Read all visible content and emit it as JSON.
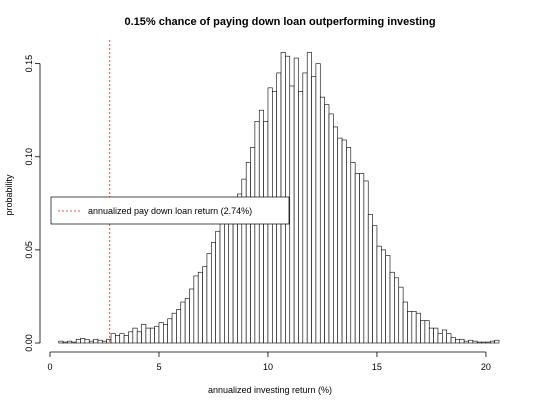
{
  "chart_data": {
    "type": "bar",
    "title": "0.15% chance of paying down loan outperforming investing",
    "xlabel": "annualized investing return (%)",
    "ylabel": "probability",
    "xlim": [
      0,
      20.6
    ],
    "ylim": [
      0,
      0.16
    ],
    "xticks": [
      0,
      5,
      10,
      15,
      20
    ],
    "yticks": [
      0.0,
      0.05,
      0.1,
      0.15
    ],
    "ytick_labels": [
      "0.00",
      "0.05",
      "0.10",
      "0.15"
    ],
    "bin_width": 0.2,
    "bins_x0": [
      0.4,
      0.6,
      0.8,
      1.0,
      1.2,
      1.4,
      1.6,
      1.8,
      2.0,
      2.2,
      2.4,
      2.6,
      2.8,
      3.0,
      3.2,
      3.4,
      3.6,
      3.8,
      4.0,
      4.2,
      4.4,
      4.6,
      4.8,
      5.0,
      5.2,
      5.4,
      5.6,
      5.8,
      6.0,
      6.2,
      6.4,
      6.6,
      6.8,
      7.0,
      7.2,
      7.4,
      7.6,
      7.8,
      8.0,
      8.2,
      8.4,
      8.6,
      8.8,
      9.0,
      9.2,
      9.4,
      9.6,
      9.8,
      10.0,
      10.2,
      10.4,
      10.6,
      10.8,
      11.0,
      11.2,
      11.4,
      11.6,
      11.8,
      12.0,
      12.2,
      12.4,
      12.6,
      12.8,
      13.0,
      13.2,
      13.4,
      13.6,
      13.8,
      14.0,
      14.2,
      14.4,
      14.6,
      14.8,
      15.0,
      15.2,
      15.4,
      15.6,
      15.8,
      16.0,
      16.2,
      16.4,
      16.6,
      16.8,
      17.0,
      17.2,
      17.4,
      17.6,
      17.8,
      18.0,
      18.2,
      18.4,
      18.6,
      18.8,
      19.0,
      19.2,
      19.4,
      19.6,
      19.8,
      20.0,
      20.2,
      20.4
    ],
    "probability": [
      0.001,
      0.0005,
      0.001,
      0.0005,
      0.002,
      0.0025,
      0.002,
      0.001,
      0.002,
      0.0015,
      0.001,
      0.002,
      0.005,
      0.004,
      0.005,
      0.004,
      0.006,
      0.008,
      0.006,
      0.01,
      0.008,
      0.008,
      0.009,
      0.011,
      0.01,
      0.013,
      0.016,
      0.018,
      0.022,
      0.024,
      0.029,
      0.036,
      0.038,
      0.041,
      0.048,
      0.054,
      0.06,
      0.065,
      0.067,
      0.071,
      0.074,
      0.08,
      0.088,
      0.097,
      0.105,
      0.119,
      0.125,
      0.119,
      0.137,
      0.135,
      0.145,
      0.156,
      0.154,
      0.138,
      0.153,
      0.135,
      0.145,
      0.156,
      0.143,
      0.15,
      0.132,
      0.128,
      0.123,
      0.116,
      0.11,
      0.109,
      0.105,
      0.097,
      0.091,
      0.091,
      0.087,
      0.069,
      0.063,
      0.052,
      0.05,
      0.047,
      0.038,
      0.035,
      0.03,
      0.022,
      0.017,
      0.017,
      0.016,
      0.012,
      0.012,
      0.008,
      0.008,
      0.005,
      0.007,
      0.005,
      0.003,
      0.002,
      0.002,
      0.001,
      0.0015,
      0.001,
      0.0005,
      0.0005,
      0.0005,
      0.001,
      0.0015
    ],
    "reference_line": {
      "x": 2.74,
      "color": "#d62728",
      "style": "dashed",
      "label": "annualized pay down loan return (2.74%)"
    },
    "legend": {
      "placement": "left-center",
      "entries": [
        "annualized pay down loan return (2.74%)"
      ]
    },
    "grid": false
  }
}
